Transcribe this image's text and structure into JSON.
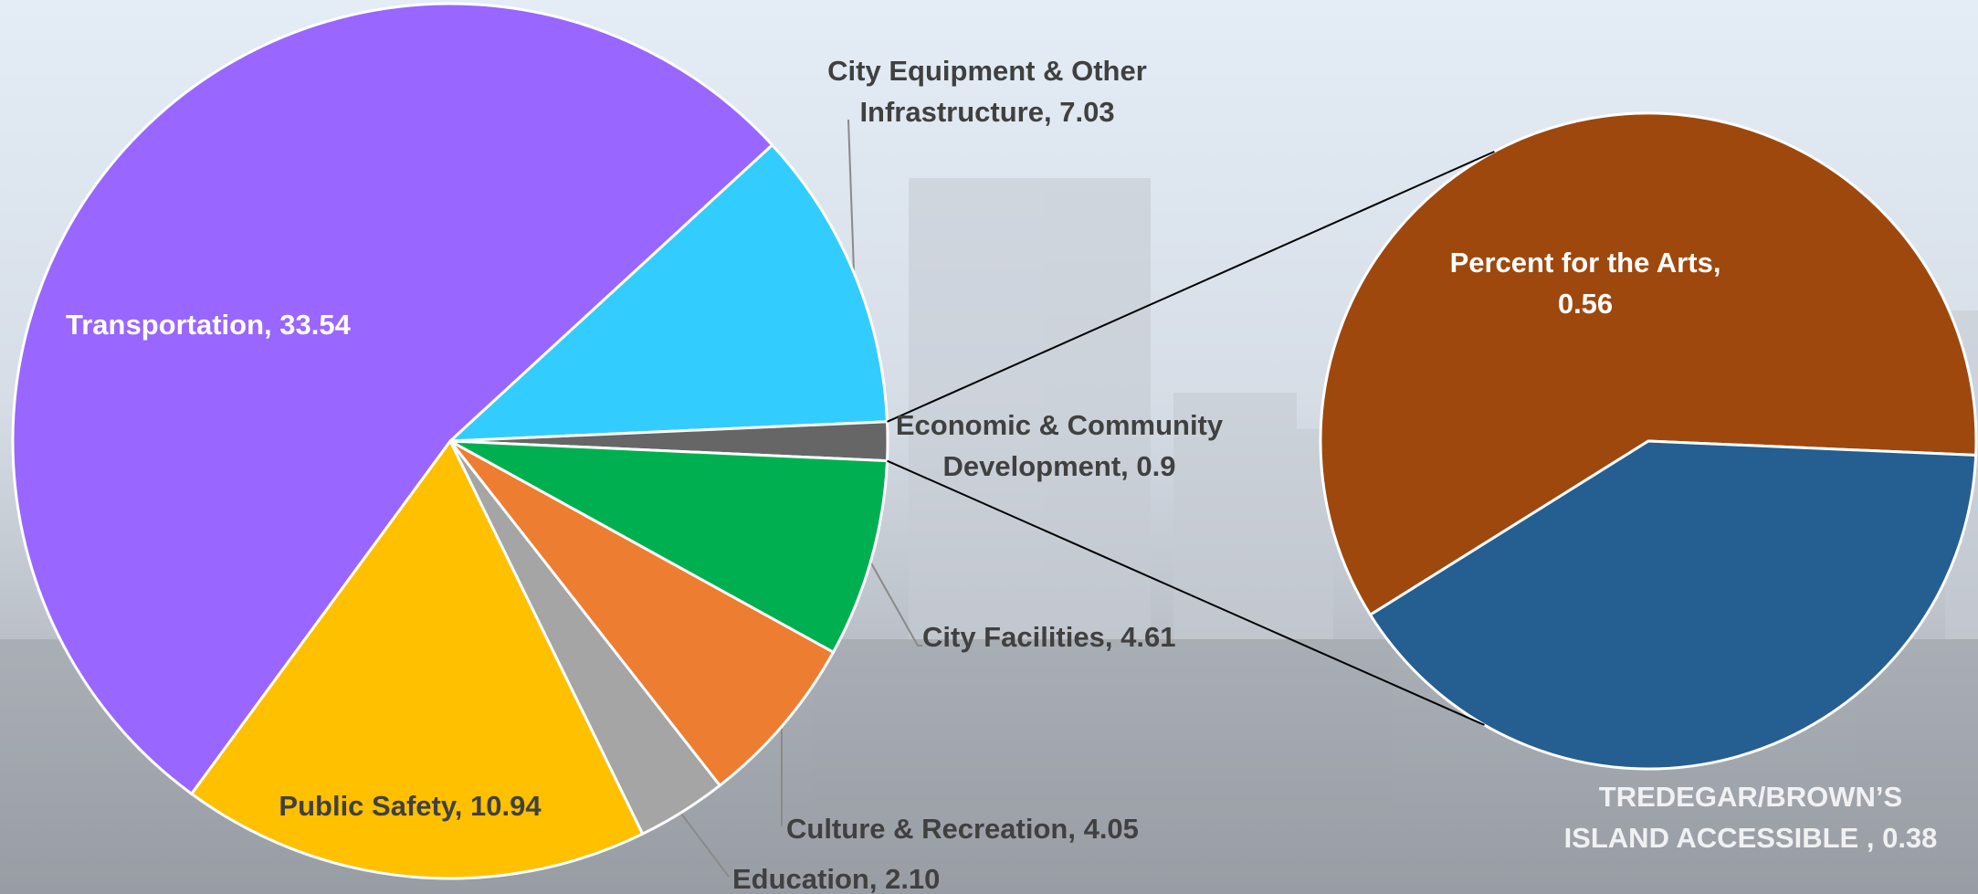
{
  "chart_data": [
    {
      "type": "pie",
      "categories": [
        "City Equipment & Other Infrastructure",
        "Economic & Community Development",
        "City Facilities",
        "Culture & Recreation",
        "Education",
        "Public Safety",
        "Transportation"
      ],
      "values": [
        7.03,
        0.9,
        4.61,
        4.05,
        2.1,
        10.94,
        33.54
      ],
      "value_labels": [
        "7.03",
        "0.9",
        "4.61",
        "4.05",
        "2.10",
        "10.94",
        "33.54"
      ],
      "colors": [
        "#33ccff",
        "#666666",
        "#00b050",
        "#ed7d31",
        "#a5a5a5",
        "#ffc000",
        "#9966ff"
      ]
    },
    {
      "type": "pie",
      "categories": [
        "Percent for the Arts",
        "TREDEGAR/BROWN’S ISLAND ACCESSIBLE "
      ],
      "values": [
        0.56,
        0.38
      ],
      "value_labels": [
        "0.56",
        "0.38"
      ],
      "colors": [
        "#9e480e",
        "#255e91"
      ]
    }
  ]
}
